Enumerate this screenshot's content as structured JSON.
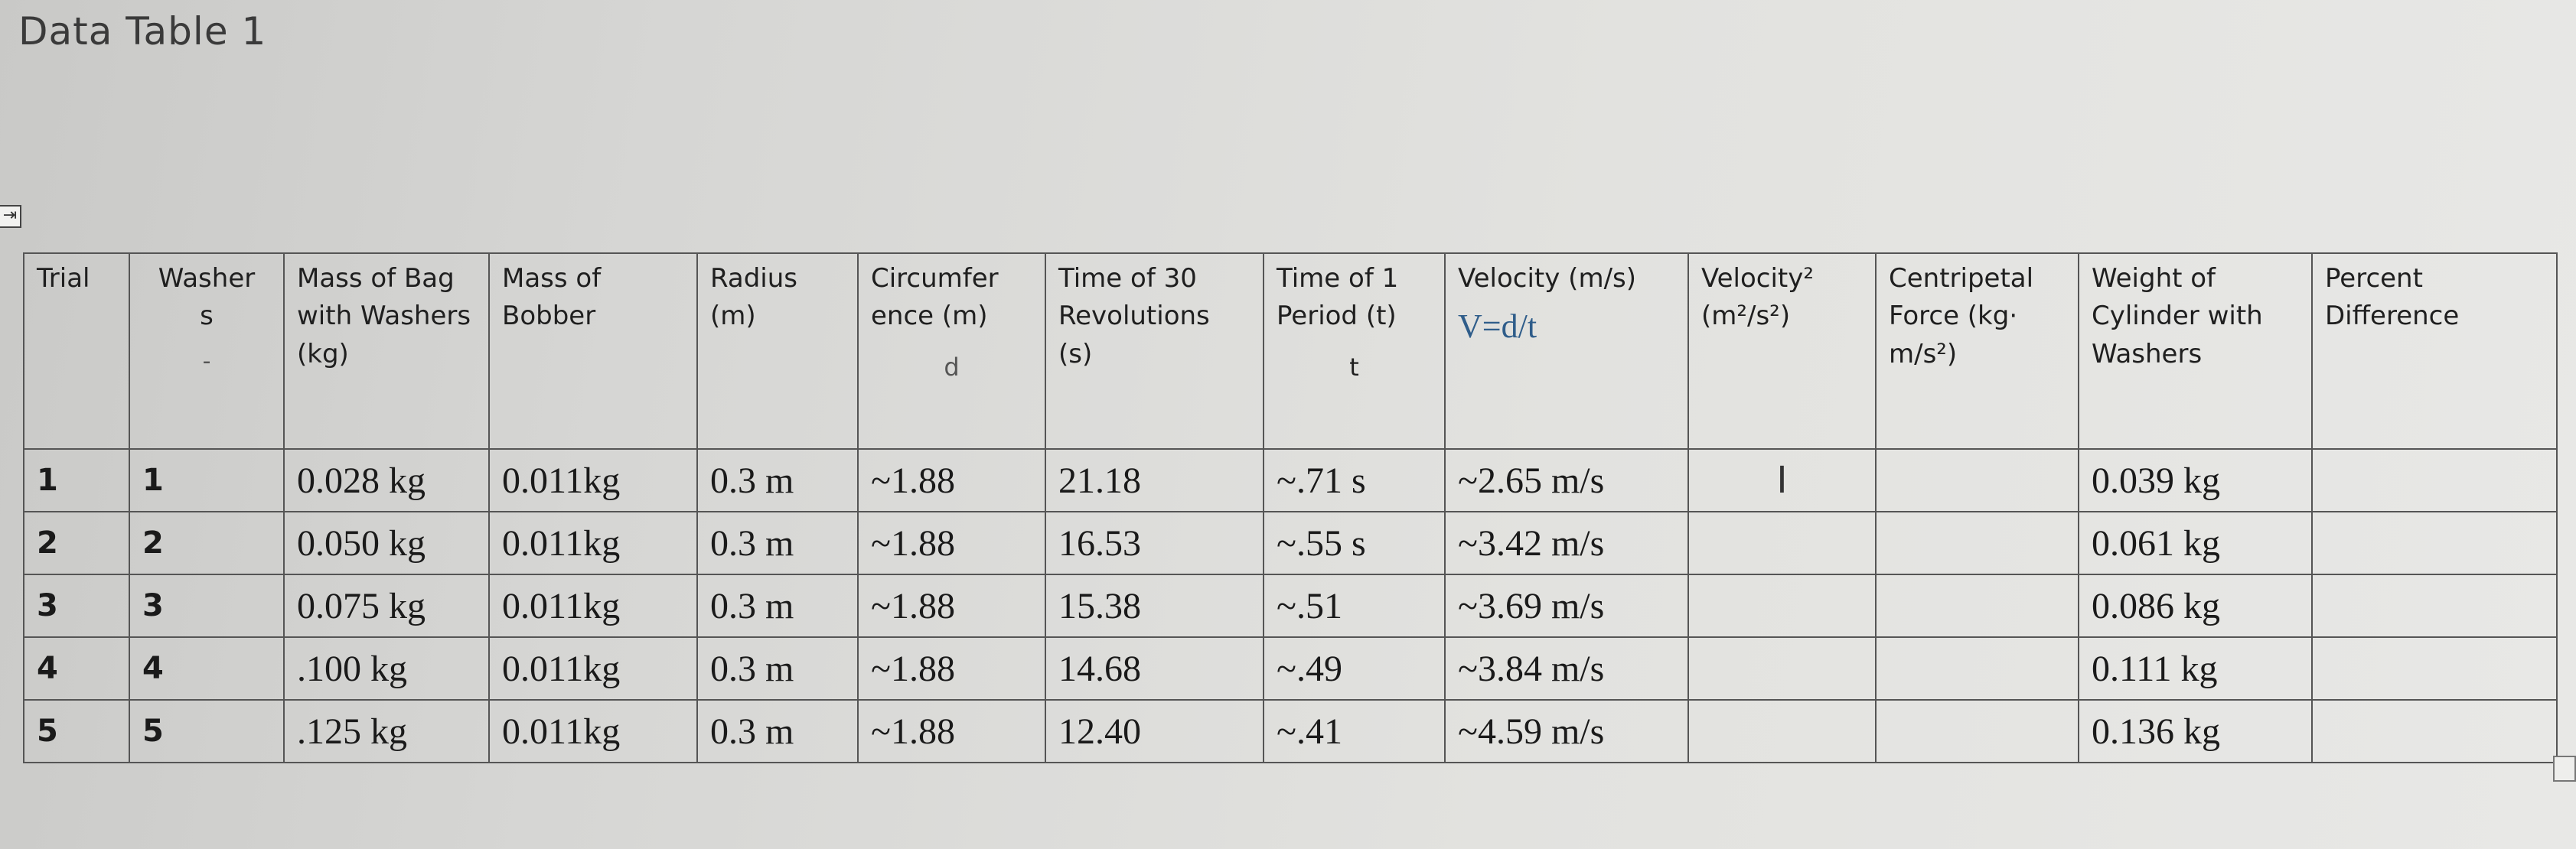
{
  "title": "Data Table 1",
  "move_handle_glyph": "⇥",
  "headers": {
    "trial": "Trial",
    "washers_line1": "Washer",
    "washers_line2": "s",
    "washers_mark": "-",
    "mass_bag": "Mass of Bag with Washers (kg)",
    "mass_bobber": "Mass of Bobber",
    "radius": "Radius (m)",
    "circumference": "Circumfer ence (m)",
    "circumference_symbol": "d",
    "time30": "Time of 30 Revolutions (s)",
    "time1": "Time of 1 Period (t)",
    "time1_symbol": "t",
    "velocity": "Velocity (m/s)",
    "velocity_formula": "V=d/t",
    "velocity_sq": "Velocity² (m²/s²)",
    "centripetal": "Centripetal Force (kg· m/s²)",
    "weight": "Weight of Cylinder with Washers",
    "percent": "Percent Difference"
  },
  "rows": [
    {
      "trial": "1",
      "washers": "1",
      "mass_bag": "0.028 kg",
      "mass_bobber": "0.011kg",
      "radius": "0.3 m",
      "circumference": "~1.88",
      "time30": "21.18",
      "time1": "~.71 s",
      "velocity": "~2.65 m/s",
      "velocity_sq": "I",
      "centripetal": "",
      "weight": "0.039 kg",
      "percent": ""
    },
    {
      "trial": "2",
      "washers": "2",
      "mass_bag": "0.050 kg",
      "mass_bobber": "0.011kg",
      "radius": "0.3 m",
      "circumference": "~1.88",
      "time30": "16.53",
      "time1": "~.55 s",
      "velocity": "~3.42 m/s",
      "velocity_sq": "",
      "centripetal": "",
      "weight": "0.061 kg",
      "percent": ""
    },
    {
      "trial": "3",
      "washers": "3",
      "mass_bag": "0.075 kg",
      "mass_bobber": "0.011kg",
      "radius": "0.3 m",
      "circumference": "~1.88",
      "time30": "15.38",
      "time1": "~.51",
      "velocity": "~3.69 m/s",
      "velocity_sq": "",
      "centripetal": "",
      "weight": "0.086 kg",
      "percent": ""
    },
    {
      "trial": "4",
      "washers": "4",
      "mass_bag": ".100 kg",
      "mass_bobber": "0.011kg",
      "radius": "0.3 m",
      "circumference": "~1.88",
      "time30": "14.68",
      "time1": "~.49",
      "velocity": "~3.84 m/s",
      "velocity_sq": "",
      "centripetal": "",
      "weight": "0.111 kg",
      "percent": ""
    },
    {
      "trial": "5",
      "washers": "5",
      "mass_bag": ".125 kg",
      "mass_bobber": "0.011kg",
      "radius": "0.3 m",
      "circumference": "~1.88",
      "time30": "12.40",
      "time1": "~.41",
      "velocity": "~4.59 m/s",
      "velocity_sq": "",
      "centripetal": "",
      "weight": "0.136 kg",
      "percent": ""
    }
  ],
  "colors": {
    "circumference_header": "#5a7d2a",
    "time1_header": "#b23d2e",
    "velocity_formula": "#2f5d8a",
    "velocity_values": "#2f5d8a",
    "time1_values": "#b23d2e",
    "circumference_values": "#5a7d2a"
  }
}
